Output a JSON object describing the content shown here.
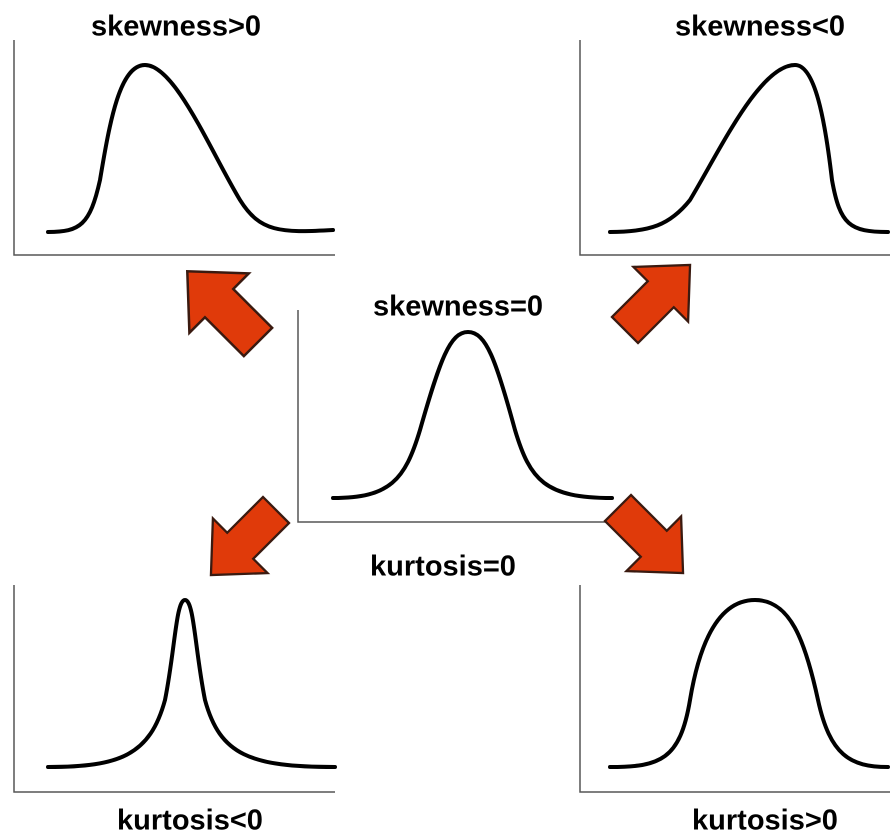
{
  "panels": {
    "top_left": {
      "label": "skewness>0"
    },
    "top_right": {
      "label": "skewness<0"
    },
    "center_top": {
      "label": "skewness=0"
    },
    "center_bottom": {
      "label": "kurtosis=0"
    },
    "bottom_left": {
      "label": "kurtosis<0"
    },
    "bottom_right": {
      "label": "kurtosis>0"
    }
  }
}
